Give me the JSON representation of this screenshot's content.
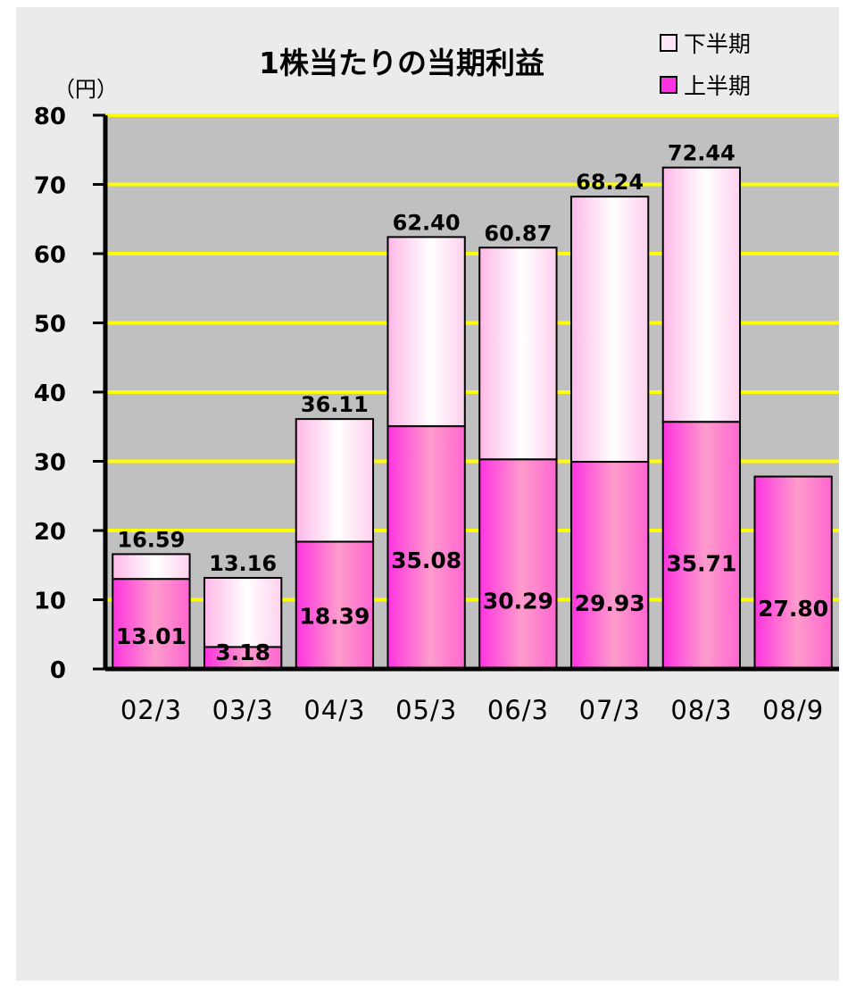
{
  "chart_data": {
    "type": "bar",
    "stacked": true,
    "title": "1株当たりの当期利益",
    "unit_label": "（円）",
    "categories": [
      "02/3",
      "03/3",
      "04/3",
      "05/3",
      "06/3",
      "07/3",
      "08/3",
      "08/9"
    ],
    "series": [
      {
        "name": "上半期",
        "values": [
          13.01,
          3.18,
          18.39,
          35.08,
          30.29,
          29.93,
          35.71,
          27.8
        ],
        "color": "#ff33e0"
      },
      {
        "name": "下半期",
        "values": [
          3.58,
          9.98,
          17.72,
          27.32,
          30.58,
          38.31,
          36.73,
          null
        ],
        "color": "#ffd6f0"
      }
    ],
    "first_labels": [
      "13.01",
      "3.18",
      "18.39",
      "35.08",
      "30.29",
      "29.93",
      "35.71",
      "27.80"
    ],
    "total_labels": [
      "16.59",
      "13.16",
      "36.11",
      "62.40",
      "60.87",
      "68.24",
      "72.44",
      ""
    ],
    "yticks": [
      "0",
      "10",
      "20",
      "30",
      "40",
      "50",
      "60",
      "70",
      "80"
    ],
    "ylim": [
      0,
      80
    ],
    "grid": true,
    "grid_color": "#ffff00",
    "plot_background": "#c0c0c0",
    "legend": {
      "placement": "top-right",
      "order": [
        "下半期",
        "上半期"
      ]
    }
  }
}
